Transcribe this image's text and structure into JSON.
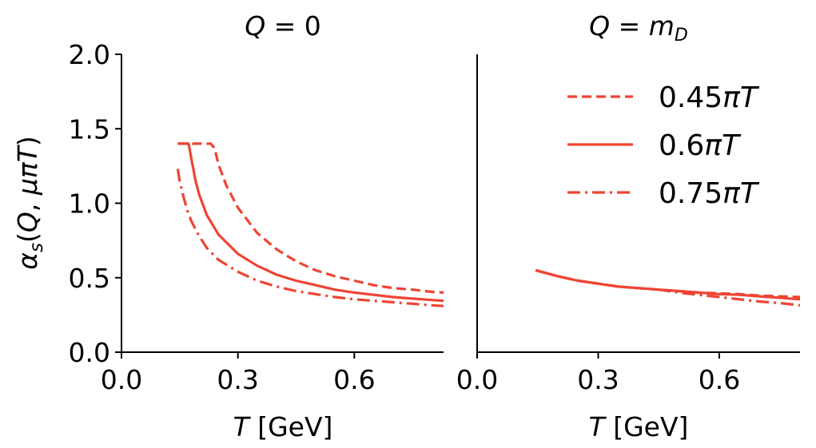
{
  "chart_data": [
    {
      "type": "line",
      "title": "Q = 0",
      "xlabel": "T [GeV]",
      "ylabel": "αs(Q, μπT)",
      "xlim": [
        0.0,
        0.83
      ],
      "ylim": [
        0.0,
        2.0
      ],
      "xticks": [
        "0.0",
        "0.3",
        "0.6"
      ],
      "xtick_values": [
        0.0,
        0.3,
        0.6
      ],
      "yticks": [
        "0.0",
        "0.5",
        "1.0",
        "1.5",
        "2.0"
      ],
      "ytick_values": [
        0.0,
        0.5,
        1.0,
        1.5,
        2.0
      ],
      "color": "#ee4433",
      "series": [
        {
          "name": "0.45πT",
          "style": "dashed",
          "x": [
            0.145,
            0.23,
            0.24,
            0.25,
            0.27,
            0.3,
            0.35,
            0.4,
            0.45,
            0.5,
            0.55,
            0.6,
            0.65,
            0.7,
            0.75,
            0.8,
            0.83
          ],
          "y": [
            1.4,
            1.4,
            1.37,
            1.26,
            1.12,
            0.97,
            0.8,
            0.69,
            0.61,
            0.55,
            0.51,
            0.48,
            0.45,
            0.43,
            0.42,
            0.405,
            0.4
          ]
        },
        {
          "name": "0.6πT",
          "style": "solid",
          "x": [
            0.145,
            0.173,
            0.18,
            0.19,
            0.2,
            0.22,
            0.25,
            0.3,
            0.35,
            0.4,
            0.45,
            0.5,
            0.55,
            0.6,
            0.65,
            0.7,
            0.75,
            0.8,
            0.83
          ],
          "y": [
            1.4,
            1.4,
            1.3,
            1.16,
            1.06,
            0.92,
            0.79,
            0.66,
            0.58,
            0.52,
            0.48,
            0.45,
            0.42,
            0.4,
            0.385,
            0.37,
            0.36,
            0.35,
            0.345
          ]
        },
        {
          "name": "0.75πT",
          "style": "dashdot",
          "x": [
            0.145,
            0.15,
            0.16,
            0.17,
            0.18,
            0.2,
            0.22,
            0.25,
            0.3,
            0.35,
            0.4,
            0.45,
            0.5,
            0.55,
            0.6,
            0.65,
            0.7,
            0.75,
            0.8,
            0.83
          ],
          "y": [
            1.23,
            1.15,
            1.04,
            0.95,
            0.88,
            0.78,
            0.7,
            0.62,
            0.54,
            0.48,
            0.44,
            0.41,
            0.39,
            0.37,
            0.355,
            0.345,
            0.335,
            0.325,
            0.315,
            0.31
          ]
        }
      ]
    },
    {
      "type": "line",
      "title": "Q = mD",
      "xlabel": "T [GeV]",
      "ylabel": "",
      "xlim": [
        0.0,
        0.8
      ],
      "ylim": [
        0.0,
        2.0
      ],
      "xticks": [
        "0.0",
        "0.3",
        "0.6"
      ],
      "xtick_values": [
        0.0,
        0.3,
        0.6
      ],
      "color": "#ee4433",
      "legend": "top-right",
      "series": [
        {
          "name": "0.45πT",
          "style": "dashed",
          "x": [
            0.145,
            0.2,
            0.25,
            0.3,
            0.35,
            0.4,
            0.45,
            0.5,
            0.55,
            0.6,
            0.65,
            0.7,
            0.75,
            0.8
          ],
          "y": [
            0.55,
            0.51,
            0.48,
            0.46,
            0.44,
            0.43,
            0.42,
            0.41,
            0.4,
            0.395,
            0.39,
            0.38,
            0.375,
            0.37
          ]
        },
        {
          "name": "0.6πT",
          "style": "solid",
          "x": [
            0.145,
            0.2,
            0.25,
            0.3,
            0.35,
            0.4,
            0.45,
            0.5,
            0.55,
            0.6,
            0.65,
            0.7,
            0.75,
            0.8
          ],
          "y": [
            0.55,
            0.51,
            0.48,
            0.46,
            0.44,
            0.43,
            0.42,
            0.41,
            0.4,
            0.39,
            0.385,
            0.375,
            0.365,
            0.355
          ]
        },
        {
          "name": "0.75πT",
          "style": "dashdot",
          "x": [
            0.145,
            0.2,
            0.25,
            0.3,
            0.35,
            0.4,
            0.45,
            0.5,
            0.55,
            0.6,
            0.65,
            0.7,
            0.75,
            0.8
          ],
          "y": [
            0.55,
            0.51,
            0.48,
            0.46,
            0.44,
            0.43,
            0.42,
            0.4,
            0.385,
            0.37,
            0.355,
            0.34,
            0.33,
            0.315
          ]
        }
      ]
    }
  ]
}
